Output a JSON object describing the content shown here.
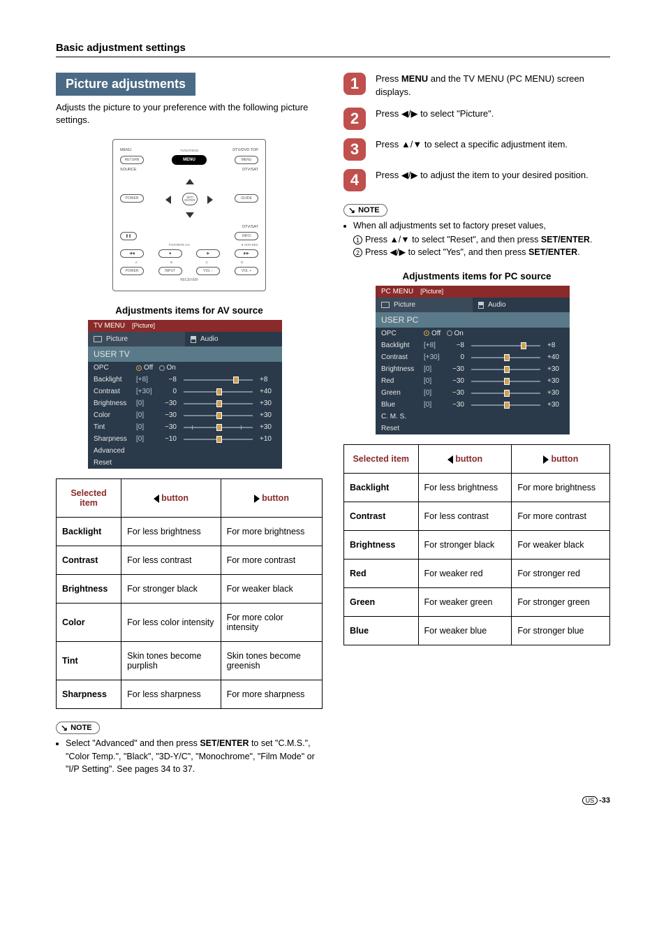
{
  "page": {
    "heading": "Basic adjustment settings",
    "footer_region": "US",
    "footer_page": "-33"
  },
  "left": {
    "banner": "Picture adjustments",
    "intro": "Adjusts the picture to your preference with the following picture settings.",
    "remote": {
      "menu": "MENU",
      "tvsatdvd": "TV/SAT/DVD",
      "dtvdvdtop": "DTV/DVD TOP",
      "return": "RETURN",
      "menu_btn": "MENU",
      "menu_btn2": "MENU",
      "source": "SOURCE",
      "dtvsat": "DTV/SAT",
      "power": "POWER",
      "guide": "GUIDE",
      "setenter": "SET/\nENTER",
      "info": "INFO",
      "favch": "FAVORITE CH",
      "vcrrec": "VCR REC",
      "a": "A",
      "b": "B",
      "c": "C",
      "d": "D",
      "power2": "POWER",
      "input": "INPUT",
      "volm": "VOL −",
      "volp": "VOL +",
      "receiver": "RECEIVER"
    },
    "adj_heading": "Adjustments items for AV source",
    "osd": {
      "title": "TV MENU",
      "title_sub": "[Picture]",
      "tab1": "Picture",
      "tab2": "Audio",
      "section": "USER TV",
      "rows": [
        {
          "name": "OPC",
          "type": "radio",
          "off": "Off",
          "on": "On"
        },
        {
          "name": "Backlight",
          "br": "[+8]",
          "v": "−8",
          "max": "+8",
          "hpos": 70
        },
        {
          "name": "Contrast",
          "br": "[+30]",
          "v": "0",
          "max": "+40",
          "hpos": 48
        },
        {
          "name": "Brightness",
          "br": "[0]",
          "v": "−30",
          "max": "+30",
          "hpos": 48
        },
        {
          "name": "Color",
          "br": "[0]",
          "v": "−30",
          "max": "+30",
          "hpos": 48
        },
        {
          "name": "Tint",
          "br": "[0]",
          "v": "−30",
          "max": "+30",
          "hpos": 48,
          "ticks": true
        },
        {
          "name": "Sharpness",
          "br": "[0]",
          "v": "−10",
          "max": "+10",
          "hpos": 48
        },
        {
          "name": "Advanced",
          "type": "plain"
        },
        {
          "name": "Reset",
          "type": "plain"
        }
      ]
    },
    "table": {
      "h1": "Selected item",
      "h2": "button",
      "h3": "button",
      "rows": [
        {
          "item": "Backlight",
          "l": "For less brightness",
          "r": "For more brightness"
        },
        {
          "item": "Contrast",
          "l": "For less contrast",
          "r": "For more contrast"
        },
        {
          "item": "Brightness",
          "l": "For stronger black",
          "r": "For weaker black"
        },
        {
          "item": "Color",
          "l": "For less color intensity",
          "r": "For more color intensity"
        },
        {
          "item": "Tint",
          "l": "Skin tones become purplish",
          "r": "Skin tones become greenish"
        },
        {
          "item": "Sharpness",
          "l": "For less sharpness",
          "r": "For more sharpness"
        }
      ]
    },
    "note": {
      "label": "NOTE",
      "text": "Select \"Advanced\" and then press SET/ENTER to set \"C.M.S.\", \"Color Temp.\", \"Black\", \"3D-Y/C\", \"Monochrome\", \"Film Mode\" or \"I/P Setting\". See pages 34 to 37."
    }
  },
  "right": {
    "steps": [
      {
        "n": "1",
        "pre": "Press ",
        "b": "MENU",
        "post": " and the TV MENU (PC MENU) screen displays."
      },
      {
        "n": "2",
        "pre": "Press ",
        "arrows": "◀/▶",
        "post": " to select \"Picture\"."
      },
      {
        "n": "3",
        "pre": "Press ",
        "arrows": "▲/▼",
        "post": " to select a specific adjustment item."
      },
      {
        "n": "4",
        "pre": "Press ",
        "arrows": "◀/▶",
        "post": " to adjust the item to your desired position."
      }
    ],
    "note_label": "NOTE",
    "note_line1": "When all adjustments set to factory preset values,",
    "note_sub1_pre": "Press ",
    "note_sub1_arrows": "▲/▼",
    "note_sub1_mid": " to select \"Reset\", and then press ",
    "note_sub1_b": "SET/ENTER",
    "note_sub1_post": ".",
    "note_sub2_pre": "Press ",
    "note_sub2_arrows": "◀/▶",
    "note_sub2_mid": " to select \"Yes\", and then press ",
    "note_sub2_b": "SET/ENTER",
    "note_sub2_post": ".",
    "adj_heading": "Adjustments items for PC source",
    "osd": {
      "title": "PC MENU",
      "title_sub": "[Picture]",
      "tab1": "Picture",
      "tab2": "Audio",
      "section": "USER PC",
      "rows": [
        {
          "name": "OPC",
          "type": "radio",
          "off": "Off",
          "on": "On"
        },
        {
          "name": "Backlight",
          "br": "[+8]",
          "v": "−8",
          "max": "+8",
          "hpos": 70
        },
        {
          "name": "Contrast",
          "br": "[+30]",
          "v": "0",
          "max": "+40",
          "hpos": 48
        },
        {
          "name": "Brightness",
          "br": "[0]",
          "v": "−30",
          "max": "+30",
          "hpos": 48
        },
        {
          "name": "Red",
          "br": "[0]",
          "v": "−30",
          "max": "+30",
          "hpos": 48
        },
        {
          "name": "Green",
          "br": "[0]",
          "v": "−30",
          "max": "+30",
          "hpos": 48
        },
        {
          "name": "Blue",
          "br": "[0]",
          "v": "−30",
          "max": "+30",
          "hpos": 48
        },
        {
          "name": "C. M. S.",
          "type": "plain"
        },
        {
          "name": "Reset",
          "type": "plain"
        }
      ]
    },
    "table": {
      "h1": "Selected item",
      "h2": "button",
      "h3": "button",
      "rows": [
        {
          "item": "Backlight",
          "l": "For less brightness",
          "r": "For more brightness"
        },
        {
          "item": "Contrast",
          "l": "For less contrast",
          "r": "For more contrast"
        },
        {
          "item": "Brightness",
          "l": "For stronger black",
          "r": "For weaker black"
        },
        {
          "item": "Red",
          "l": "For weaker red",
          "r": "For stronger red"
        },
        {
          "item": "Green",
          "l": "For weaker green",
          "r": "For stronger green"
        },
        {
          "item": "Blue",
          "l": "For weaker blue",
          "r": "For stronger blue"
        }
      ]
    }
  }
}
